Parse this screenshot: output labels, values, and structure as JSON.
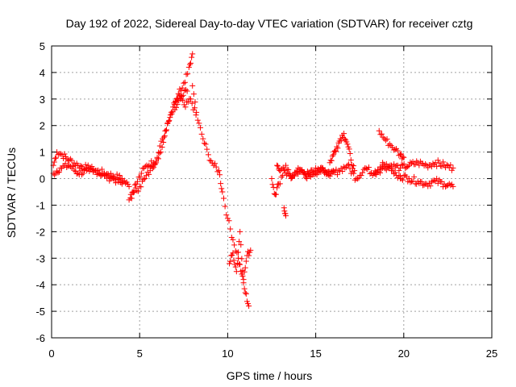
{
  "chart_data": {
    "type": "scatter",
    "title": "Day 192 of 2022, Sidereal Day-to-day VTEC variation (SDTVAR) for receiver cztg",
    "xlabel": "GPS time / hours",
    "ylabel": "SDTVAR / TECUs",
    "xlim": [
      0,
      25
    ],
    "ylim": [
      -6,
      5
    ],
    "xticks": [
      "0",
      "5",
      "10",
      "15",
      "20",
      "25"
    ],
    "yticks": [
      "-6",
      "-5",
      "-4",
      "-3",
      "-2",
      "-1",
      "0",
      "1",
      "2",
      "3",
      "4",
      "5"
    ],
    "grid": true,
    "marker": "+",
    "color": "#ff0000",
    "series": [
      {
        "name": "SDTVAR",
        "segments": [
          {
            "x": [
              0.1,
              0.3,
              0.6,
              1.0,
              1.5,
              2.0,
              2.5,
              3.0,
              3.5,
              4.0,
              4.4
            ],
            "y": [
              0.5,
              1.0,
              0.9,
              0.7,
              0.5,
              0.4,
              0.3,
              0.2,
              0.1,
              0.0,
              -0.3
            ]
          },
          {
            "x": [
              0.1,
              0.5,
              1.0,
              1.5,
              2.0,
              2.5,
              3.0,
              3.5,
              4.0
            ],
            "y": [
              0.2,
              0.4,
              0.5,
              0.2,
              0.3,
              0.3,
              0.1,
              0.0,
              -0.2
            ]
          },
          {
            "x": [
              4.4,
              4.7,
              5.0,
              5.3,
              5.6,
              6.0,
              6.3,
              6.6,
              6.9,
              7.2,
              7.5,
              7.8,
              8.0
            ],
            "y": [
              -0.8,
              -0.5,
              -0.3,
              0.0,
              0.3,
              0.8,
              1.5,
              2.1,
              2.7,
              3.2,
              3.6,
              4.2,
              4.7
            ]
          },
          {
            "x": [
              4.5,
              4.8,
              5.1,
              5.4,
              5.8,
              6.2,
              6.5,
              6.8,
              7.1,
              7.4,
              7.7
            ],
            "y": [
              -0.6,
              -0.2,
              0.2,
              0.5,
              0.6,
              1.0,
              1.8,
              2.5,
              3.0,
              3.1,
              3.3
            ]
          },
          {
            "x": [
              7.0,
              7.3,
              7.6,
              7.9,
              8.2
            ],
            "y": [
              2.6,
              3.0,
              2.7,
              3.0,
              2.4
            ]
          },
          {
            "x": [
              8.0,
              8.3,
              8.6,
              8.9,
              9.2,
              9.5,
              9.7,
              10.0,
              10.3,
              10.6,
              10.8,
              11.0,
              11.2
            ],
            "y": [
              3.5,
              2.2,
              1.5,
              0.9,
              0.5,
              0.3,
              -0.5,
              -1.5,
              -2.3,
              -3.0,
              -3.6,
              -4.3,
              -4.8
            ]
          },
          {
            "x": [
              10.1,
              10.3,
              10.5,
              10.7,
              10.9,
              11.1,
              11.3
            ],
            "y": [
              -3.2,
              -2.8,
              -3.5,
              -2.0,
              -3.8,
              -2.9,
              -2.7
            ]
          },
          {
            "x": [
              12.5,
              12.7,
              12.9,
              13.2,
              13.5,
              13.8,
              14.2,
              14.6,
              15.0,
              15.4,
              15.8
            ],
            "y": [
              0.0,
              -0.6,
              -0.2,
              0.3,
              0.1,
              0.1,
              0.3,
              0.2,
              0.2,
              0.4,
              0.1
            ]
          },
          {
            "x": [
              12.8,
              13.0,
              13.3,
              13.6,
              14.0,
              14.5,
              15.0,
              15.5,
              16.0
            ],
            "y": [
              0.5,
              0.3,
              0.5,
              0.0,
              0.4,
              0.0,
              0.4,
              0.2,
              0.3
            ]
          },
          {
            "x": [
              13.2,
              13.3
            ],
            "y": [
              -1.1,
              -1.4
            ]
          },
          {
            "x": [
              15.8,
              16.0,
              16.2,
              16.4,
              16.6,
              16.8,
              17.0,
              17.2
            ],
            "y": [
              0.6,
              0.9,
              1.2,
              1.5,
              1.7,
              1.3,
              0.7,
              0.3
            ]
          },
          {
            "x": [
              15.8,
              16.3,
              16.8,
              17.3,
              17.8,
              18.3,
              18.8,
              19.3,
              19.8
            ],
            "y": [
              0.1,
              0.3,
              0.5,
              0.0,
              0.4,
              0.2,
              0.6,
              0.3,
              0.0
            ]
          },
          {
            "x": [
              18.6,
              18.9,
              19.2,
              19.5,
              19.8,
              20.0
            ],
            "y": [
              1.8,
              1.5,
              1.3,
              1.1,
              0.9,
              0.8
            ]
          },
          {
            "x": [
              18.3,
              18.8,
              19.3,
              19.8,
              20.3,
              20.8,
              21.3,
              21.8,
              22.3,
              22.8
            ],
            "y": [
              0.2,
              0.4,
              0.5,
              0.4,
              0.5,
              0.6,
              0.5,
              0.6,
              0.5,
              0.4
            ]
          },
          {
            "x": [
              19.8,
              20.3,
              20.8,
              21.3,
              21.8,
              22.3,
              22.8
            ],
            "y": [
              0.1,
              0.0,
              -0.1,
              -0.2,
              -0.1,
              -0.2,
              -0.3
            ]
          }
        ]
      }
    ]
  }
}
